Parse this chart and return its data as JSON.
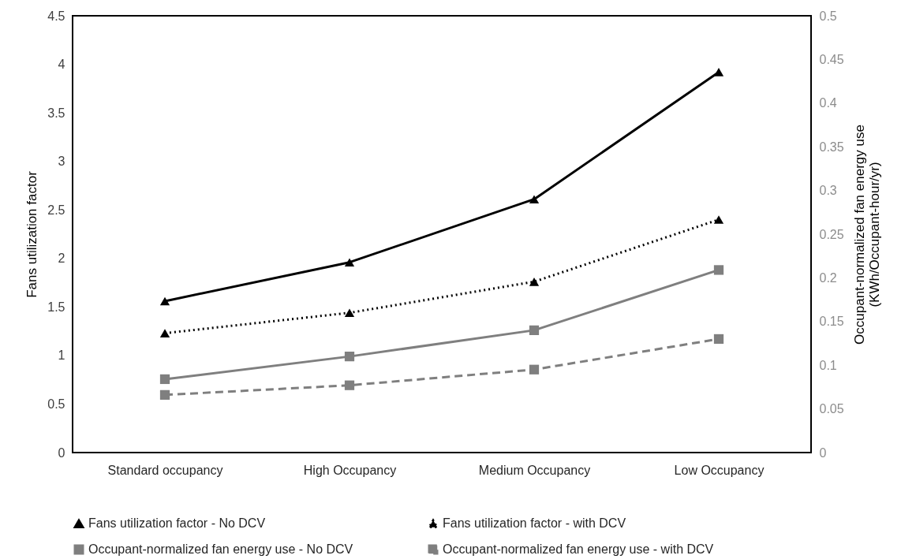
{
  "chart_data": {
    "type": "line",
    "categories": [
      "Standard occupancy",
      "High Occupancy",
      "Medium Occupancy",
      "Low Occupancy"
    ],
    "ylabel": "Fans utilization factor",
    "y2label": "Occupant-normalized fan energy use\n(KWh/Occupant-hour/yr)",
    "ylim": [
      0,
      4.5
    ],
    "yticks": [
      0,
      0.5,
      1,
      1.5,
      2,
      2.5,
      3,
      3.5,
      4,
      4.5
    ],
    "y2lim": [
      0,
      0.5
    ],
    "y2ticks": [
      0,
      0.05,
      0.1,
      0.15,
      0.2,
      0.25,
      0.3,
      0.35,
      0.4,
      0.45,
      0.5
    ],
    "grid": false,
    "legend": "bottom",
    "series": [
      {
        "name": "Fans utilization factor - No DCV",
        "color": "#000000",
        "values": [
          1.56,
          1.96,
          2.61,
          3.92
        ],
        "marker": "triangle",
        "line_style": "solid"
      },
      {
        "name": "Fans utilization factor - with DCV",
        "color": "#000000",
        "values": [
          1.23,
          1.44,
          1.76,
          2.4
        ],
        "marker": "triangle",
        "line_style": "dotted"
      },
      {
        "name": "Occupant-normalized fan energy use - No DCV",
        "color": "#7f7f7f",
        "values": [
          0.084,
          0.11,
          0.14,
          0.209
        ],
        "marker": "square",
        "line_style": "solid",
        "axis": "y2"
      },
      {
        "name": "Occupant-normalized fan energy use - with DCV",
        "color": "#7f7f7f",
        "values": [
          0.066,
          0.077,
          0.095,
          0.13
        ],
        "marker": "square",
        "line_style": "dashed",
        "axis": "y2"
      }
    ]
  }
}
